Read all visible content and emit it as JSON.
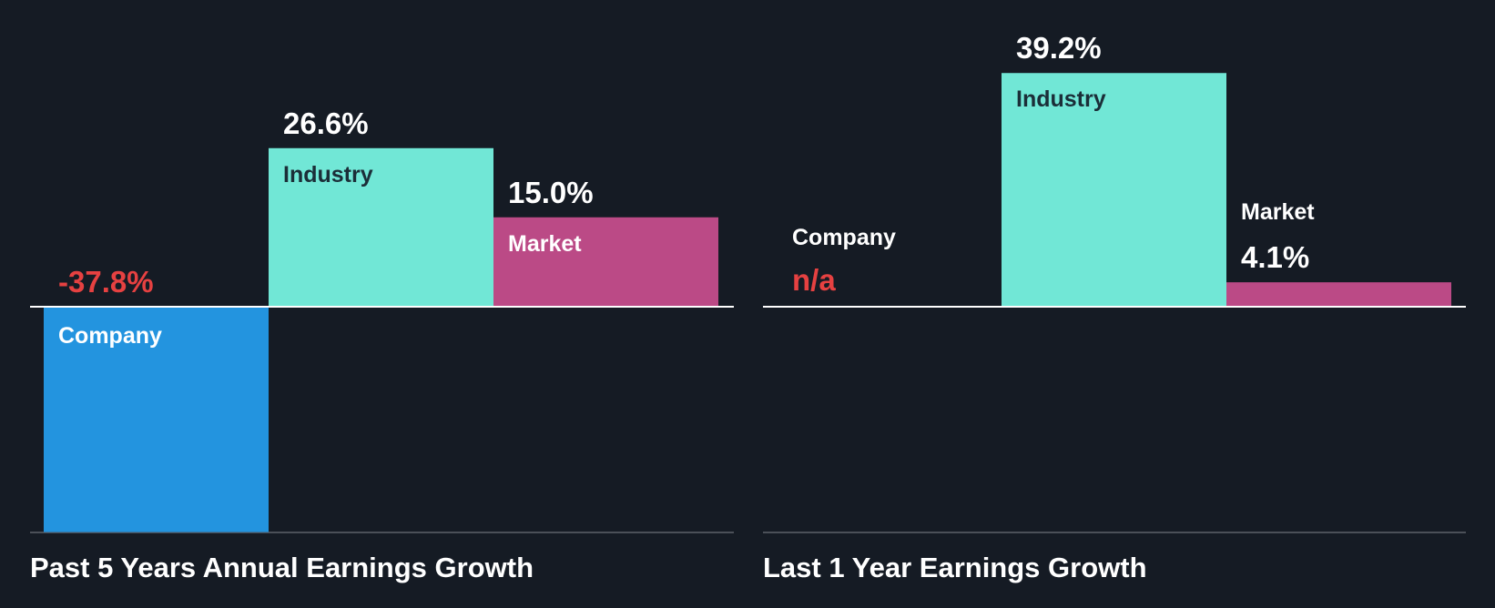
{
  "colors": {
    "background": "#151b24",
    "company": "#2394df",
    "industry": "#71e7d6",
    "market": "#bb4a86",
    "negative_text": "#e64141",
    "label_dark": "#1b2e38",
    "label_light": "#ffffff",
    "baseline": "#ffffff",
    "floor": "#4b5058"
  },
  "chart_data": [
    {
      "type": "bar",
      "title": "Past 5 Years Annual Earnings Growth",
      "categories": [
        "Company",
        "Industry",
        "Market"
      ],
      "values": [
        -37.8,
        26.6,
        15.0
      ],
      "value_labels": [
        "-37.8%",
        "26.6%",
        "15.0%"
      ],
      "unit": "%",
      "grid": false,
      "legend": "none"
    },
    {
      "type": "bar",
      "title": "Last 1 Year Earnings Growth",
      "categories": [
        "Company",
        "Industry",
        "Market"
      ],
      "values": [
        null,
        39.2,
        4.1
      ],
      "value_labels": [
        "n/a",
        "39.2%",
        "4.1%"
      ],
      "unit": "%",
      "grid": false,
      "legend": "none"
    }
  ]
}
